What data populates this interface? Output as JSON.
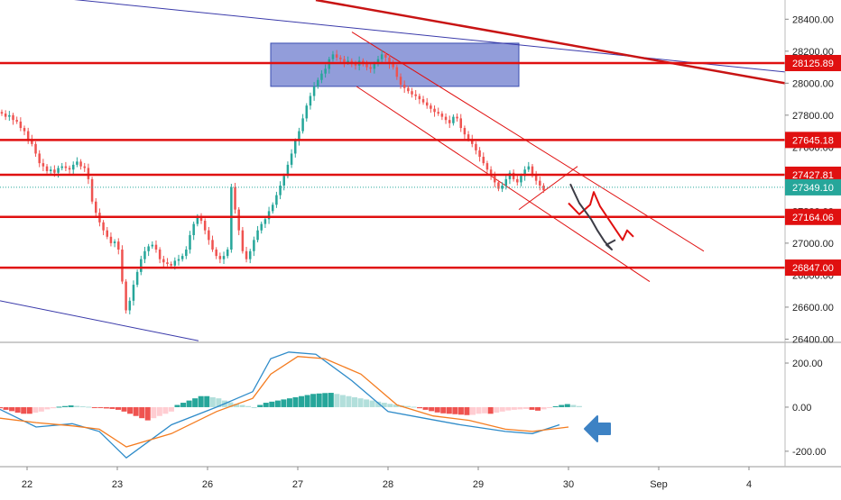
{
  "chart_data": [
    {
      "type": "candlestick",
      "title": "",
      "ylim": [
        26380,
        28520
      ],
      "y_ticks": [
        26400,
        26600,
        26800,
        27000,
        27200,
        27400,
        27600,
        27800,
        28000,
        28200,
        28400
      ],
      "y_tick_labels": [
        "26400.00",
        "26600.00",
        "26800.00",
        "27000.00",
        "27200.00",
        "27400.00",
        "27600.00",
        "27800.00",
        "28000.00",
        "28200.00",
        "28400.00"
      ],
      "x_ticks": [
        {
          "label": "22",
          "x": 0.3
        },
        {
          "label": "23",
          "x": 1.3
        },
        {
          "label": "26",
          "x": 2.3
        },
        {
          "label": "27",
          "x": 3.3
        },
        {
          "label": "28",
          "x": 4.3
        },
        {
          "label": "29",
          "x": 5.3
        },
        {
          "label": "30",
          "x": 6.3
        },
        {
          "label": "Sep",
          "x": 7.3
        },
        {
          "label": "4",
          "x": 8.3
        }
      ],
      "xlim": [
        0,
        8.7
      ],
      "candle_step": 0.0417,
      "candle_closes": [
        27810,
        27790,
        27800,
        27770,
        27760,
        27720,
        27700,
        27650,
        27620,
        27560,
        27500,
        27480,
        27450,
        27460,
        27440,
        27470,
        27480,
        27470,
        27460,
        27490,
        27510,
        27480,
        27470,
        27400,
        27260,
        27190,
        27130,
        27080,
        27040,
        27000,
        27010,
        26960,
        26760,
        26580,
        26640,
        26740,
        26820,
        26900,
        26950,
        26980,
        26990,
        26960,
        26900,
        26880,
        26870,
        26860,
        26890,
        26900,
        26920,
        26960,
        27050,
        27120,
        27160,
        27140,
        27080,
        27020,
        26960,
        26920,
        26900,
        26920,
        26960,
        27350,
        27210,
        27080,
        26950,
        26900,
        26950,
        27020,
        27080,
        27120,
        27150,
        27200,
        27240,
        27300,
        27360,
        27420,
        27490,
        27560,
        27640,
        27700,
        27780,
        27860,
        27920,
        27980,
        28020,
        28060,
        28090,
        28150,
        28180,
        28160,
        28150,
        28130,
        28140,
        28120,
        28110,
        28140,
        28120,
        28100,
        28090,
        28120,
        28150,
        28180,
        28160,
        28120,
        28100,
        28040,
        27990,
        27970,
        27950,
        27930,
        27920,
        27900,
        27880,
        27860,
        27840,
        27820,
        27810,
        27790,
        27770,
        27750,
        27790,
        27780,
        27720,
        27680,
        27650,
        27620,
        27580,
        27540,
        27500,
        27460,
        27420,
        27380,
        27340,
        27360,
        27400,
        27440,
        27400,
        27380,
        27420,
        27460,
        27480,
        27430,
        27390,
        27360,
        27330
      ],
      "hlines": [
        {
          "value": 28125.89,
          "label": "28125.89",
          "color": "#e01010"
        },
        {
          "value": 27645.18,
          "label": "27645.18",
          "color": "#e01010"
        },
        {
          "value": 27427.81,
          "label": "27427.81",
          "color": "#e01010"
        },
        {
          "value": 27164.06,
          "label": "27164.06",
          "color": "#e01010"
        },
        {
          "value": 26847.0,
          "label": "26847.00",
          "color": "#e01010"
        }
      ],
      "last_price": {
        "value": 27349.1,
        "label": "27349.10",
        "color": "#26a69a"
      },
      "zone": {
        "x1": 3.0,
        "x2": 5.75,
        "y1": 28250,
        "y2": 27980,
        "color": "#4a5cc2"
      },
      "trendlines": [
        {
          "points": [
            [
              0.0,
              28570
            ],
            [
              8.7,
              28070
            ]
          ],
          "color": "#3a3aaa",
          "width": 1
        },
        {
          "points": [
            [
              0.0,
              26640
            ],
            [
              2.2,
              26390
            ]
          ],
          "color": "#3a3aaa",
          "width": 1
        },
        {
          "points": [
            [
              3.5,
              28520
            ],
            [
              8.7,
              28000
            ]
          ],
          "color": "#c81414",
          "width": 2.5
        },
        {
          "points": [
            [
              3.9,
              28320
            ],
            [
              7.8,
              26950
            ]
          ],
          "color": "#e01010",
          "width": 1
        },
        {
          "points": [
            [
              3.95,
              27980
            ],
            [
              7.2,
              26760
            ]
          ],
          "color": "#e01010",
          "width": 1
        },
        {
          "points": [
            [
              5.75,
              27210
            ],
            [
              6.4,
              27480
            ]
          ],
          "color": "#e01010",
          "width": 1
        }
      ],
      "drawings": [
        {
          "color": "#e01010",
          "points": [
            [
              6.3,
              27250
            ],
            [
              6.42,
              27180
            ],
            [
              6.54,
              27240
            ],
            [
              6.58,
              27320
            ],
            [
              6.65,
              27230
            ],
            [
              6.78,
              27120
            ],
            [
              6.9,
              27020
            ],
            [
              6.95,
              27080
            ],
            [
              7.02,
              27040
            ]
          ]
        },
        {
          "color": "#3c3c46",
          "points": [
            [
              6.32,
              27370
            ],
            [
              6.42,
              27250
            ],
            [
              6.55,
              27150
            ],
            [
              6.62,
              27080
            ],
            [
              6.7,
              27010
            ],
            [
              6.78,
              26960
            ],
            [
              6.72,
              26990
            ],
            [
              6.82,
              27020
            ]
          ]
        }
      ]
    },
    {
      "type": "macd",
      "ylim": [
        -270,
        290
      ],
      "y_ticks": [
        200,
        0,
        -200
      ],
      "y_tick_labels": [
        "200.00",
        "0.00",
        "-200.00"
      ],
      "xlim": [
        0,
        8.7
      ],
      "macd_line": {
        "color": "#2e8bc9",
        "x": [
          0,
          0.4,
          0.8,
          1.1,
          1.4,
          1.9,
          2.4,
          2.8,
          3.0,
          3.2,
          3.5,
          3.9,
          4.3,
          4.7,
          5.1,
          5.6,
          5.9,
          6.2
        ],
        "y": [
          -10,
          -90,
          -75,
          -110,
          -230,
          -80,
          0,
          70,
          220,
          250,
          240,
          120,
          -20,
          -50,
          -80,
          -110,
          -120,
          -80
        ]
      },
      "signal_line": {
        "color": "#f47c20",
        "x": [
          0,
          0.4,
          0.8,
          1.1,
          1.4,
          1.9,
          2.4,
          2.8,
          3.0,
          3.3,
          3.6,
          4.0,
          4.4,
          4.8,
          5.2,
          5.6,
          5.9,
          6.3
        ],
        "y": [
          -50,
          -70,
          -85,
          -100,
          -180,
          -120,
          -20,
          40,
          150,
          230,
          220,
          150,
          10,
          -40,
          -60,
          -100,
          -110,
          -90
        ]
      },
      "histogram": [
        -5,
        -12,
        -18,
        -25,
        -30,
        -30,
        -25,
        -20,
        -10,
        -5,
        2,
        5,
        8,
        6,
        4,
        2,
        -2,
        -4,
        -6,
        -8,
        -12,
        -20,
        -30,
        -40,
        -50,
        -60,
        -50,
        -40,
        -30,
        -20,
        10,
        20,
        30,
        40,
        50,
        50,
        45,
        40,
        30,
        22,
        15,
        10,
        5,
        0,
        10,
        20,
        25,
        30,
        35,
        40,
        45,
        50,
        55,
        60,
        62,
        64,
        65,
        60,
        55,
        50,
        45,
        40,
        35,
        30,
        25,
        20,
        15,
        12,
        8,
        5,
        2,
        -5,
        -12,
        -18,
        -24,
        -28,
        -30,
        -32,
        -34,
        -36,
        -35,
        -30,
        -28,
        -30,
        -25,
        -20,
        -15,
        -12,
        -10,
        -8,
        -12,
        -16,
        -10,
        -4,
        4,
        10,
        14,
        10,
        5
      ],
      "histogram_start_x": 0.0,
      "histogram_step": 0.0655,
      "hist_colors": {
        "up_strong": "#26a69a",
        "up_weak": "#b2dfdb",
        "down_strong": "#ef5350",
        "down_weak": "#ffcdd2"
      }
    }
  ],
  "annotations": {
    "arrow_color": "#3d82c4"
  }
}
